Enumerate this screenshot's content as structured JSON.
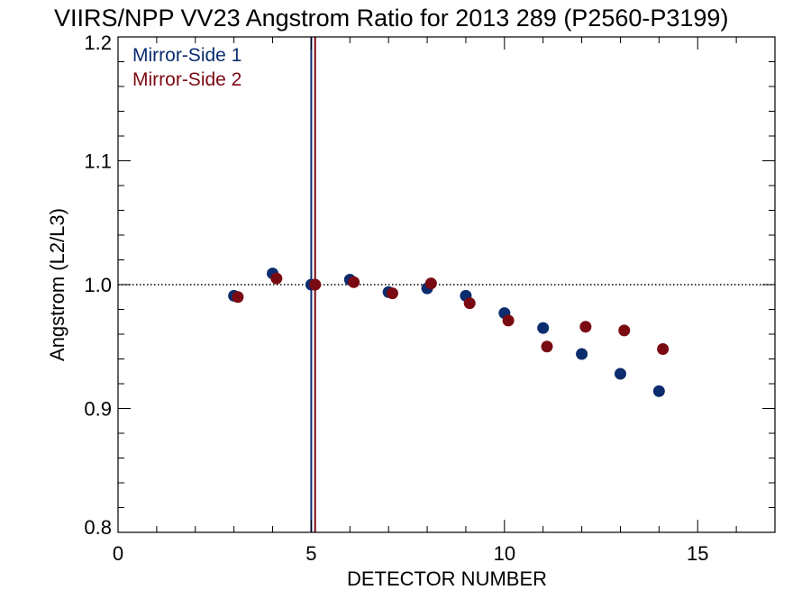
{
  "chart_data": {
    "type": "scatter",
    "title": "VIIRS/NPP VV23 Angstrom Ratio for 2013 289 (P2560-P3199)",
    "xlabel": "DETECTOR NUMBER",
    "ylabel": "Angstrom (L2/L3)",
    "xlim": [
      0,
      17
    ],
    "ylim": [
      0.8,
      1.2
    ],
    "x_ticks": [
      0,
      5,
      10,
      15
    ],
    "y_ticks": [
      0.8,
      0.9,
      1.0,
      1.1,
      1.2
    ],
    "x_tick_labels": [
      "0",
      "5",
      "10",
      "15"
    ],
    "y_tick_labels": [
      "0.8",
      "0.9",
      "1.0",
      "1.1",
      "1.2"
    ],
    "reference_line": {
      "y": 1.0,
      "style": "dotted"
    },
    "vertical_lines": [
      {
        "x": 5.0,
        "color": "#0b2d6e"
      },
      {
        "x": 5.1,
        "color": "#7a0a12"
      }
    ],
    "legend_position": "top-left",
    "series": [
      {
        "name": "Mirror-Side 1",
        "color": "#0b2d6e",
        "x": [
          3,
          4,
          5,
          6,
          7,
          8,
          9,
          10,
          11,
          12,
          13,
          14
        ],
        "y": [
          0.991,
          1.009,
          1.0,
          1.004,
          0.994,
          0.997,
          0.991,
          0.977,
          0.965,
          0.944,
          0.928,
          0.914
        ]
      },
      {
        "name": "Mirror-Side 2",
        "color": "#7a0a12",
        "x": [
          3.1,
          4.1,
          5.1,
          6.1,
          7.1,
          8.1,
          9.1,
          10.1,
          11.1,
          12.1,
          13.1,
          14.1
        ],
        "y": [
          0.99,
          1.005,
          1.0,
          1.002,
          0.993,
          1.001,
          0.985,
          0.971,
          0.95,
          0.966,
          0.963,
          0.948
        ]
      }
    ]
  }
}
